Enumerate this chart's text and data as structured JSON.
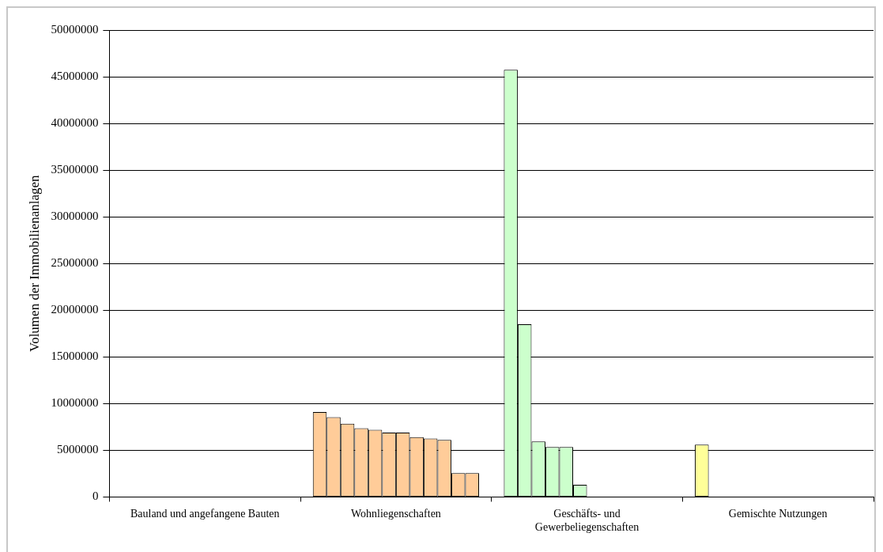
{
  "chart_data": {
    "type": "bar",
    "ylabel": "Volumen der Immobilienanlagen",
    "categories": [
      "Bauland und angefangene Bauten",
      "Wohnliegenschaften",
      "Geschäfts- und Gewerbeliegenschaften",
      "Gemischte Nutzungen"
    ],
    "series": [
      {
        "colors": [
          "#ffcc99",
          "#ffcc99",
          "#ccffcc",
          "#ffff99"
        ],
        "values": [
          null,
          9100000,
          45750000,
          5600000
        ]
      },
      {
        "colors": [
          "#ffcc99",
          "#ffcc99",
          "#ccffcc",
          "#ffff99"
        ],
        "values": [
          null,
          8550000,
          18500000,
          null
        ]
      },
      {
        "colors": [
          "#ffcc99",
          "#ffcc99",
          "#ccffcc",
          "#ffff99"
        ],
        "values": [
          null,
          7850000,
          5950000,
          null
        ]
      },
      {
        "colors": [
          "#ffcc99",
          "#ffcc99",
          "#ccffcc",
          "#ffff99"
        ],
        "values": [
          null,
          7350000,
          5350000,
          null
        ]
      },
      {
        "colors": [
          "#ffcc99",
          "#ffcc99",
          "#ccffcc",
          "#ffff99"
        ],
        "values": [
          null,
          7200000,
          5350000,
          null
        ]
      },
      {
        "colors": [
          "#ffcc99",
          "#ffcc99",
          "#ccffcc",
          "#ffff99"
        ],
        "values": [
          null,
          6900000,
          1300000,
          null
        ]
      },
      {
        "colors": [
          "#ffcc99",
          "#ffcc99",
          "#ccffcc",
          "#ffff99"
        ],
        "values": [
          null,
          6900000,
          null,
          null
        ]
      },
      {
        "colors": [
          "#ffcc99",
          "#ffcc99",
          "#ccffcc",
          "#ffff99"
        ],
        "values": [
          null,
          6400000,
          null,
          null
        ]
      },
      {
        "colors": [
          "#ffcc99",
          "#ffcc99",
          "#ccffcc",
          "#ffff99"
        ],
        "values": [
          null,
          6250000,
          null,
          null
        ]
      },
      {
        "colors": [
          "#ffcc99",
          "#ffcc99",
          "#ccffcc",
          "#ffff99"
        ],
        "values": [
          null,
          6100000,
          null,
          null
        ]
      },
      {
        "colors": [
          "#ffcc99",
          "#ffcc99",
          "#ccffcc",
          "#ffff99"
        ],
        "values": [
          null,
          2550000,
          null,
          null
        ]
      },
      {
        "colors": [
          "#ffcc99",
          "#ffcc99",
          "#ccffcc",
          "#ffff99"
        ],
        "values": [
          null,
          2550000,
          null,
          null
        ]
      }
    ],
    "ylim": [
      0,
      50000000
    ],
    "yticks": [
      0,
      5000000,
      10000000,
      15000000,
      20000000,
      25000000,
      30000000,
      35000000,
      40000000,
      45000000,
      50000000
    ],
    "grid": "y",
    "legend": false
  }
}
